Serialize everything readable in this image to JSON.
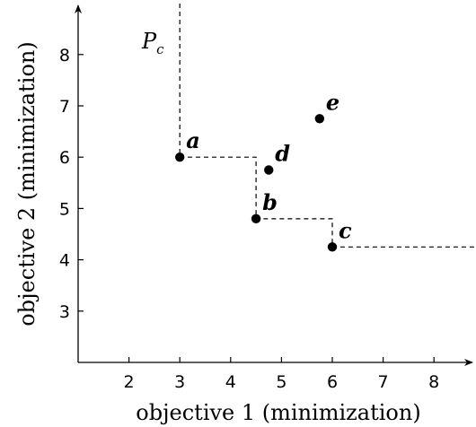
{
  "chart_data": {
    "type": "scatter",
    "title": "",
    "xlabel": "objective 1 (minimization)",
    "ylabel": "objective 2 (minimization)",
    "xlim": [
      1,
      9
    ],
    "ylim": [
      2,
      9
    ],
    "xticks": [
      2,
      3,
      4,
      5,
      6,
      7,
      8
    ],
    "yticks": [
      3,
      4,
      5,
      6,
      7,
      8
    ],
    "grid": false,
    "points": [
      {
        "label": "a",
        "x": 3.0,
        "y": 6.0,
        "on_front": true
      },
      {
        "label": "b",
        "x": 4.5,
        "y": 4.8,
        "on_front": true
      },
      {
        "label": "c",
        "x": 6.0,
        "y": 4.25,
        "on_front": true
      },
      {
        "label": "d",
        "x": 4.75,
        "y": 5.75,
        "on_front": false
      },
      {
        "label": "e",
        "x": 5.75,
        "y": 6.75,
        "on_front": false
      }
    ],
    "front": {
      "label_main": "P",
      "label_sub": "c",
      "style": "dashed-staircase"
    }
  }
}
